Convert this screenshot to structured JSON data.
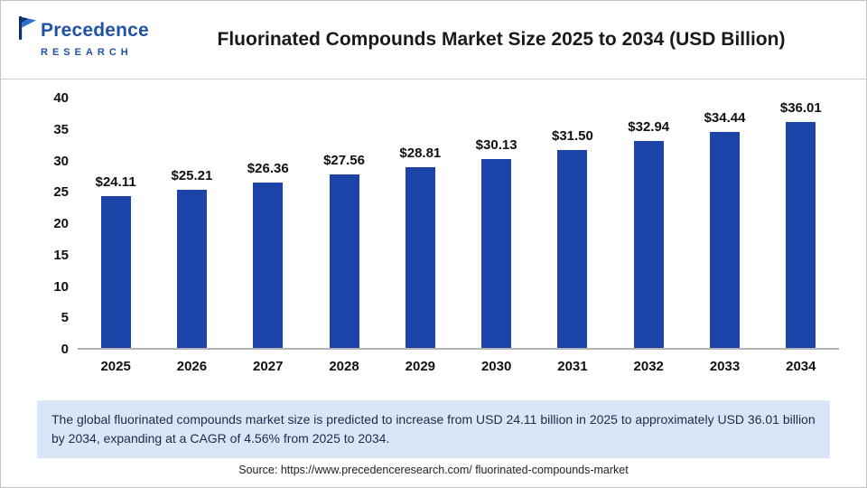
{
  "header": {
    "logo": {
      "line1": "Precedence",
      "line2": "RESEARCH"
    },
    "title": "Fluorinated Compounds Market Size 2025 to 2034 (USD Billion)"
  },
  "chart_data": {
    "type": "bar",
    "title": "Fluorinated Compounds Market Size 2025 to 2034 (USD Billion)",
    "categories": [
      "2025",
      "2026",
      "2027",
      "2028",
      "2029",
      "2030",
      "2031",
      "2032",
      "2033",
      "2034"
    ],
    "values": [
      24.11,
      25.21,
      26.36,
      27.56,
      28.81,
      30.13,
      31.5,
      32.94,
      34.44,
      36.01
    ],
    "value_labels": [
      "$24.11",
      "$25.21",
      "$26.36",
      "$27.56",
      "$28.81",
      "$30.13",
      "$31.50",
      "$32.94",
      "$34.44",
      "$36.01"
    ],
    "xlabel": "",
    "ylabel": "",
    "ylim": [
      0,
      40
    ],
    "yticks": [
      0,
      5,
      10,
      15,
      20,
      25,
      30,
      35,
      40
    ],
    "grid": "off",
    "legend": "none",
    "bar_color": "#1c44a8"
  },
  "note": {
    "text": "The global fluorinated compounds market size is predicted to increase from USD 24.11 billion in 2025 to approximately USD 36.01 billion by 2034, expanding at a CAGR of 4.56% from 2025 to 2034.",
    "bg_color": "#d8e7f7"
  },
  "source": {
    "text": "Source: https://www.precedenceresearch.com/ fluorinated-compounds-market"
  }
}
